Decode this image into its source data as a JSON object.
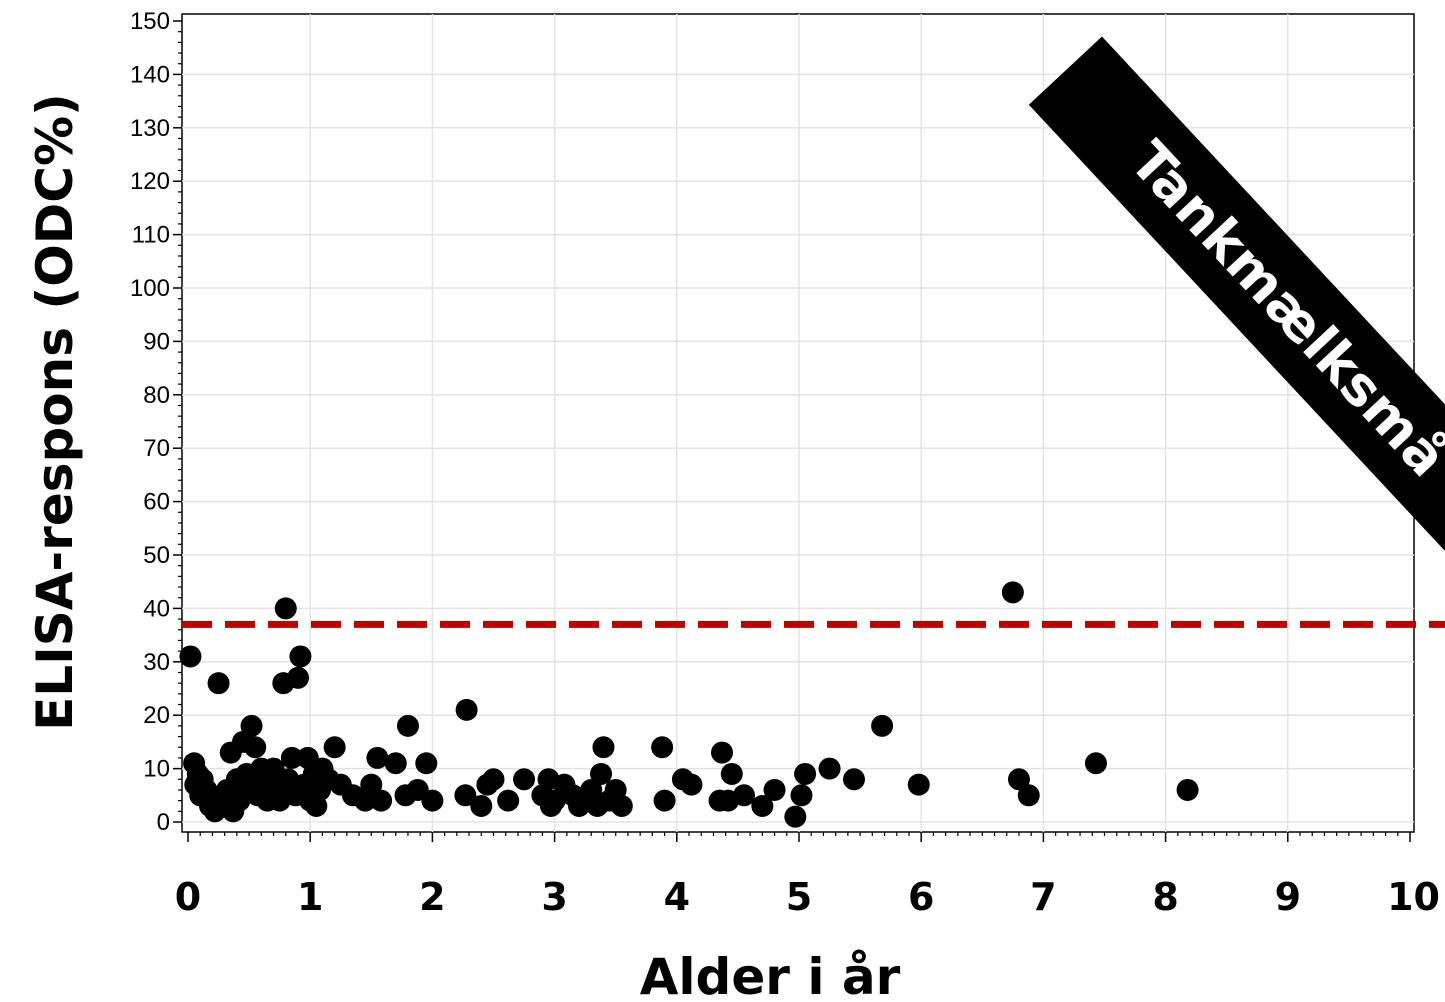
{
  "chart_data": {
    "type": "scatter",
    "title": "",
    "xlabel": "Alder i år",
    "ylabel": "ELISA-respons (ODC%)",
    "xlim": [
      0,
      10
    ],
    "ylim": [
      0,
      150
    ],
    "x_ticks": [
      0,
      1,
      2,
      3,
      4,
      5,
      6,
      7,
      8,
      9,
      10
    ],
    "y_ticks": [
      0,
      10,
      20,
      30,
      40,
      50,
      60,
      70,
      80,
      90,
      100,
      110,
      120,
      130,
      140,
      150
    ],
    "grid": true,
    "threshold": {
      "y": 37,
      "color": "#c00000",
      "style": "dashed"
    },
    "banner_text": "Tankmælksmå",
    "marker_color": "#000000",
    "points": [
      [
        0.02,
        31
      ],
      [
        0.05,
        11
      ],
      [
        0.06,
        7
      ],
      [
        0.08,
        9
      ],
      [
        0.1,
        5
      ],
      [
        0.12,
        8
      ],
      [
        0.15,
        6
      ],
      [
        0.18,
        3
      ],
      [
        0.2,
        4
      ],
      [
        0.22,
        2
      ],
      [
        0.25,
        26
      ],
      [
        0.28,
        5
      ],
      [
        0.3,
        3
      ],
      [
        0.32,
        6
      ],
      [
        0.35,
        13
      ],
      [
        0.37,
        2
      ],
      [
        0.4,
        8
      ],
      [
        0.42,
        4
      ],
      [
        0.45,
        15
      ],
      [
        0.48,
        9
      ],
      [
        0.5,
        6
      ],
      [
        0.52,
        18
      ],
      [
        0.55,
        14
      ],
      [
        0.57,
        5
      ],
      [
        0.6,
        10
      ],
      [
        0.62,
        7
      ],
      [
        0.65,
        4
      ],
      [
        0.68,
        9
      ],
      [
        0.7,
        10
      ],
      [
        0.72,
        6
      ],
      [
        0.75,
        4
      ],
      [
        0.78,
        26
      ],
      [
        0.8,
        40
      ],
      [
        0.82,
        8
      ],
      [
        0.85,
        12
      ],
      [
        0.88,
        5
      ],
      [
        0.9,
        27
      ],
      [
        0.92,
        31
      ],
      [
        0.95,
        7
      ],
      [
        0.98,
        12
      ],
      [
        1.0,
        4
      ],
      [
        1.03,
        9
      ],
      [
        1.05,
        3
      ],
      [
        1.08,
        6
      ],
      [
        1.1,
        10
      ],
      [
        1.15,
        8
      ],
      [
        1.2,
        14
      ],
      [
        1.25,
        7
      ],
      [
        1.35,
        5
      ],
      [
        1.45,
        4
      ],
      [
        1.5,
        7
      ],
      [
        1.55,
        12
      ],
      [
        1.58,
        4
      ],
      [
        1.7,
        11
      ],
      [
        1.78,
        5
      ],
      [
        1.8,
        18
      ],
      [
        1.88,
        6
      ],
      [
        1.95,
        11
      ],
      [
        2.0,
        4
      ],
      [
        2.27,
        5
      ],
      [
        2.28,
        21
      ],
      [
        2.4,
        3
      ],
      [
        2.45,
        7
      ],
      [
        2.5,
        8
      ],
      [
        2.62,
        4
      ],
      [
        2.75,
        8
      ],
      [
        2.9,
        5
      ],
      [
        2.95,
        8
      ],
      [
        2.97,
        3
      ],
      [
        3.0,
        4
      ],
      [
        3.08,
        7
      ],
      [
        3.15,
        5
      ],
      [
        3.2,
        3
      ],
      [
        3.3,
        6
      ],
      [
        3.35,
        3
      ],
      [
        3.38,
        9
      ],
      [
        3.4,
        14
      ],
      [
        3.45,
        4
      ],
      [
        3.5,
        6
      ],
      [
        3.55,
        3
      ],
      [
        3.88,
        14
      ],
      [
        3.9,
        4
      ],
      [
        4.05,
        8
      ],
      [
        4.12,
        7
      ],
      [
        4.35,
        4
      ],
      [
        4.37,
        13
      ],
      [
        4.42,
        4
      ],
      [
        4.45,
        9
      ],
      [
        4.55,
        5
      ],
      [
        4.7,
        3
      ],
      [
        4.8,
        6
      ],
      [
        4.97,
        1
      ],
      [
        5.02,
        5
      ],
      [
        5.05,
        9
      ],
      [
        5.25,
        10
      ],
      [
        5.45,
        8
      ],
      [
        5.68,
        18
      ],
      [
        5.98,
        7
      ],
      [
        6.75,
        43
      ],
      [
        6.8,
        8
      ],
      [
        6.88,
        5
      ],
      [
        7.43,
        11
      ],
      [
        8.18,
        6
      ]
    ]
  }
}
